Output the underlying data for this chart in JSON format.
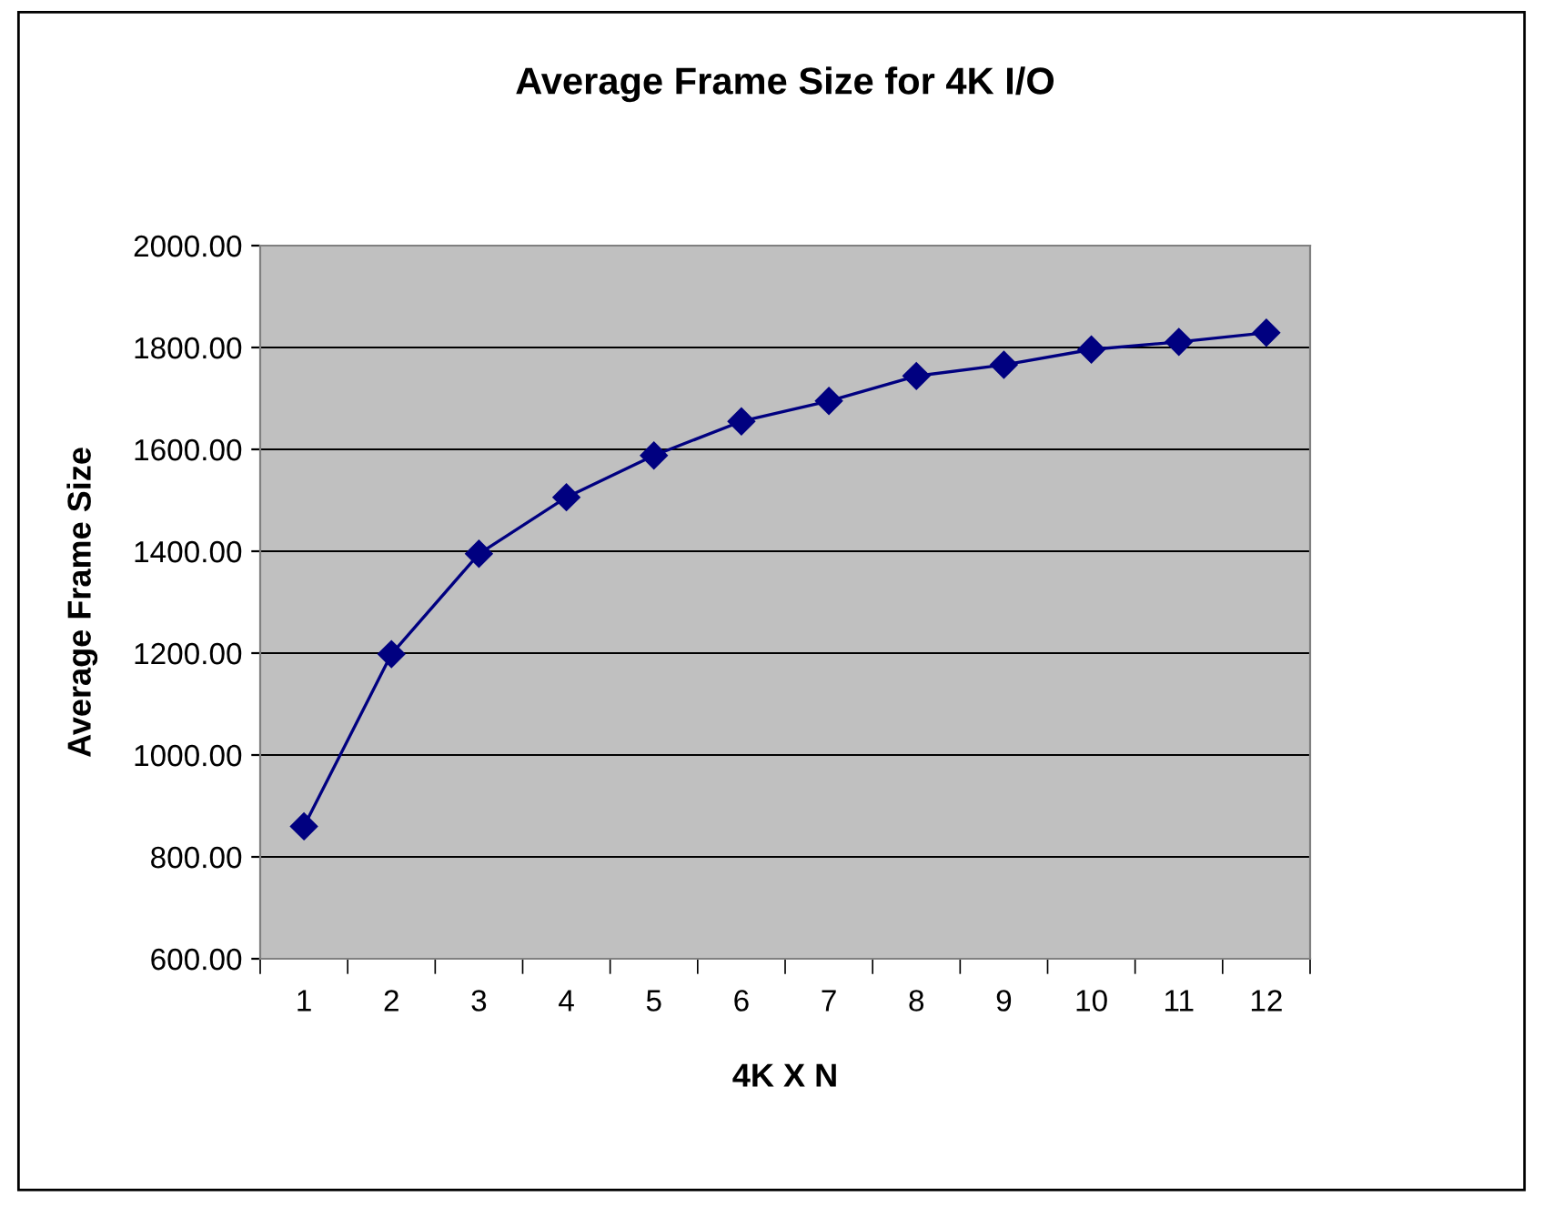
{
  "chart_data": {
    "type": "line",
    "title": "Average Frame Size for 4K I/O",
    "xlabel": "4K X N",
    "ylabel": "Average Frame Size",
    "categories": [
      "1",
      "2",
      "3",
      "4",
      "5",
      "6",
      "7",
      "8",
      "9",
      "10",
      "11",
      "12"
    ],
    "series": [
      {
        "color": "#000080",
        "values": [
          860,
          1198,
          1395,
          1506,
          1588,
          1655,
          1695,
          1744,
          1766,
          1796,
          1811,
          1829
        ]
      }
    ],
    "ylim": [
      600,
      2000
    ],
    "yticks": [
      {
        "value": 600,
        "label": "600.00"
      },
      {
        "value": 800,
        "label": "800.00"
      },
      {
        "value": 1000,
        "label": "1000.00"
      },
      {
        "value": 1200,
        "label": "1200.00"
      },
      {
        "value": 1400,
        "label": "1400.00"
      },
      {
        "value": 1600,
        "label": "1600.00"
      },
      {
        "value": 1800,
        "label": "1800.00"
      },
      {
        "value": 2000,
        "label": "2000.00"
      }
    ],
    "grid": "y",
    "marker": "diamond",
    "line_style": "solid",
    "legend": false
  }
}
